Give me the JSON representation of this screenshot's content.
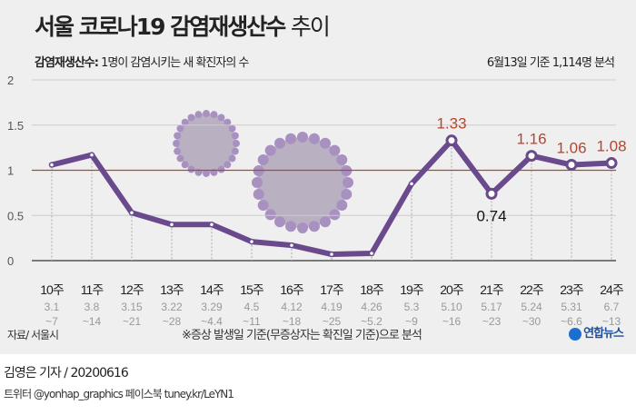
{
  "title_bold": "서울 코로나19 감염재생산수",
  "title_light": "추이",
  "subtitle_term": "감염재생산수:",
  "subtitle_def": "1명이 감염시키는 새 확진자의 수",
  "basis": "6월13일 기준 1,114명 분석",
  "source": "자료/ 서울시",
  "note": "※증상 발생일 기준(무증상자는 확진일 기준)으로 분석",
  "logo": "연합뉴스",
  "reporter": "김영은 기자 / 20200616",
  "sns": "트위터 @yonhap_graphics  페이스북 tuney.kr/LeYN1",
  "colors": {
    "line": "#6a4a8c",
    "reference": "#b5452f",
    "highlight_label": "#b5452f"
  },
  "chart_data": {
    "type": "line",
    "title": "서울 코로나19 감염재생산수 추이",
    "ylim": [
      0,
      2
    ],
    "yticks": [
      "0",
      "0.5",
      "1",
      "1.5",
      "2"
    ],
    "reference_line": 1,
    "grid": true,
    "categories": [
      "10주",
      "11주",
      "12주",
      "13주",
      "14주",
      "15주",
      "16주",
      "17주",
      "18주",
      "19주",
      "20주",
      "21주",
      "22주",
      "23주",
      "24주"
    ],
    "date_ranges": [
      [
        "3.1",
        "~7"
      ],
      [
        "3.8",
        "~14"
      ],
      [
        "3.15",
        "~21"
      ],
      [
        "3.22",
        "~28"
      ],
      [
        "3.29",
        "~4.4"
      ],
      [
        "4.5",
        "~11"
      ],
      [
        "4.12",
        "~18"
      ],
      [
        "4.19",
        "~25"
      ],
      [
        "4.26",
        "~5.2"
      ],
      [
        "5.3",
        "~9"
      ],
      [
        "5.10",
        "~16"
      ],
      [
        "5.17",
        "~23"
      ],
      [
        "5.24",
        "~30"
      ],
      [
        "5.31",
        "~6.6"
      ],
      [
        "6.7",
        "~13"
      ]
    ],
    "values": [
      1.06,
      1.17,
      0.53,
      0.4,
      0.4,
      0.21,
      0.17,
      0.07,
      0.08,
      0.85,
      1.33,
      0.74,
      1.16,
      1.06,
      1.08
    ],
    "data_labels": [
      {
        "index": 10,
        "text": "1.33",
        "color": "red"
      },
      {
        "index": 11,
        "text": "0.74",
        "color": "black"
      },
      {
        "index": 12,
        "text": "1.16",
        "color": "red"
      },
      {
        "index": 13,
        "text": "1.06",
        "color": "red"
      },
      {
        "index": 14,
        "text": "1.08",
        "color": "red"
      }
    ]
  }
}
